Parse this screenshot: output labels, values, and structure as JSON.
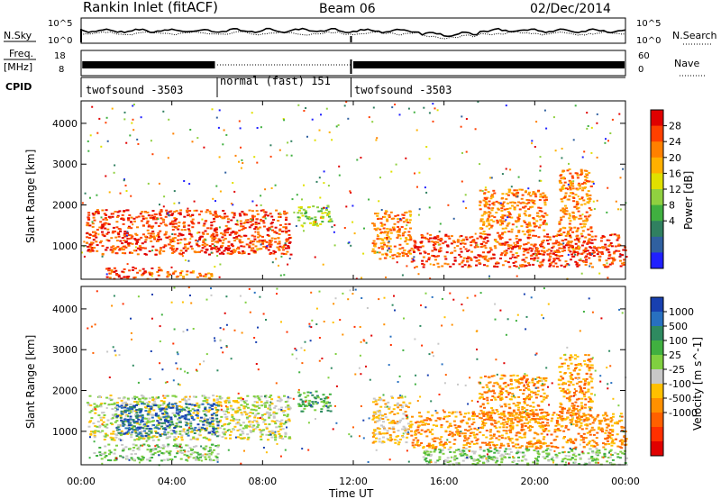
{
  "header": {
    "title": "Rankin Inlet (fitACF)",
    "beam": "Beam 06",
    "date": "02/Dec/2014"
  },
  "noise_panel": {
    "left_label": "N.Sky",
    "right_label": "N.Search",
    "left_ticks": [
      "10^5",
      "10^0"
    ],
    "right_ticks": [
      "10^5",
      "10^0"
    ]
  },
  "freq_panel": {
    "left_label_top": "Freq.",
    "left_label_bottom": "[MHz]",
    "right_label": "Nave",
    "left_ticks": [
      "18",
      "8"
    ],
    "right_ticks": [
      "60",
      "0"
    ]
  },
  "cpid": {
    "label": "CPID",
    "segments": [
      {
        "name": "twofsound -3503",
        "start_hour": 0,
        "end_hour": 6
      },
      {
        "name": "normal (fast) 151",
        "start_hour": 6,
        "end_hour": 11.9
      },
      {
        "name": "twofsound -3503",
        "start_hour": 11.9,
        "end_hour": 24
      }
    ]
  },
  "x_axis": {
    "label": "Time UT",
    "ticks": [
      "00:00",
      "04:00",
      "08:00",
      "12:00",
      "16:00",
      "20:00",
      "00:00"
    ]
  },
  "chart_data": [
    {
      "type": "heatmap",
      "quantity": "Power",
      "xlabel": "Time UT",
      "ylabel": "Slant Range [km]",
      "xlim": [
        0,
        24
      ],
      "ylim": [
        180,
        4550
      ],
      "yticks": [
        1000,
        2000,
        3000,
        4000
      ],
      "colorbar": {
        "label": "Power [dB]",
        "ticks": [
          "28",
          "24",
          "20",
          "16",
          "12",
          "8",
          "4"
        ],
        "colors": [
          "#e00000",
          "#ff4000",
          "#ff8000",
          "#ffb000",
          "#e0e000",
          "#90d040",
          "#40b040",
          "#308060",
          "#3060a0",
          "#2020ff"
        ]
      },
      "blocks": [
        {
          "t0": 0.2,
          "t1": 9.2,
          "r0": 800,
          "r1": 1900,
          "level": "28"
        },
        {
          "t0": 1.0,
          "t1": 3.5,
          "r0": 200,
          "r1": 500,
          "level": "28"
        },
        {
          "t0": 3.5,
          "t1": 5.8,
          "r0": 200,
          "r1": 400,
          "level": "24"
        },
        {
          "t0": 9.5,
          "t1": 11.0,
          "r0": 1500,
          "r1": 2000,
          "level": "12"
        },
        {
          "t0": 12.8,
          "t1": 14.5,
          "r0": 700,
          "r1": 1900,
          "level": "24"
        },
        {
          "t0": 14.5,
          "t1": 24.0,
          "r0": 500,
          "r1": 1300,
          "level": "28"
        },
        {
          "t0": 17.5,
          "t1": 20.5,
          "r0": 1300,
          "r1": 2400,
          "level": "24"
        },
        {
          "t0": 21.0,
          "t1": 22.5,
          "r0": 1300,
          "r1": 2900,
          "level": "24"
        }
      ]
    },
    {
      "type": "heatmap",
      "quantity": "Velocity",
      "xlabel": "Time UT",
      "ylabel": "Slant Range [km]",
      "xlim": [
        0,
        24
      ],
      "ylim": [
        180,
        4550
      ],
      "yticks": [
        1000,
        2000,
        3000,
        4000
      ],
      "colorbar": {
        "label": "Velocity [m s^-1]",
        "ticks": [
          "1000",
          "500",
          "100",
          "25",
          "-25",
          "-100",
          "-500",
          "-1000"
        ],
        "colors": [
          "#1840b0",
          "#2870c0",
          "#2e8a60",
          "#40b040",
          "#80d040",
          "#c8c8c8",
          "#ffc000",
          "#ff9000",
          "#ff6000",
          "#ff3000",
          "#e00000"
        ]
      },
      "blocks": [
        {
          "t0": 0.2,
          "t1": 9.2,
          "r0": 800,
          "r1": 1900,
          "level": "-25"
        },
        {
          "t0": 1.5,
          "t1": 6.0,
          "r0": 900,
          "r1": 1700,
          "level": "1000"
        },
        {
          "t0": 0.5,
          "t1": 6.0,
          "r0": 300,
          "r1": 700,
          "level": "25"
        },
        {
          "t0": 9.5,
          "t1": 11.0,
          "r0": 1500,
          "r1": 2000,
          "level": "100"
        },
        {
          "t0": 12.8,
          "t1": 14.5,
          "r0": 700,
          "r1": 1900,
          "level": "-100"
        },
        {
          "t0": 14.5,
          "t1": 24.0,
          "r0": 600,
          "r1": 1500,
          "level": "-500"
        },
        {
          "t0": 17.5,
          "t1": 20.5,
          "r0": 1300,
          "r1": 2400,
          "level": "-500"
        },
        {
          "t0": 21.0,
          "t1": 22.5,
          "r0": 1300,
          "r1": 2900,
          "level": "-500"
        },
        {
          "t0": 15.0,
          "t1": 24.0,
          "r0": 200,
          "r1": 600,
          "level": "25"
        }
      ]
    }
  ]
}
